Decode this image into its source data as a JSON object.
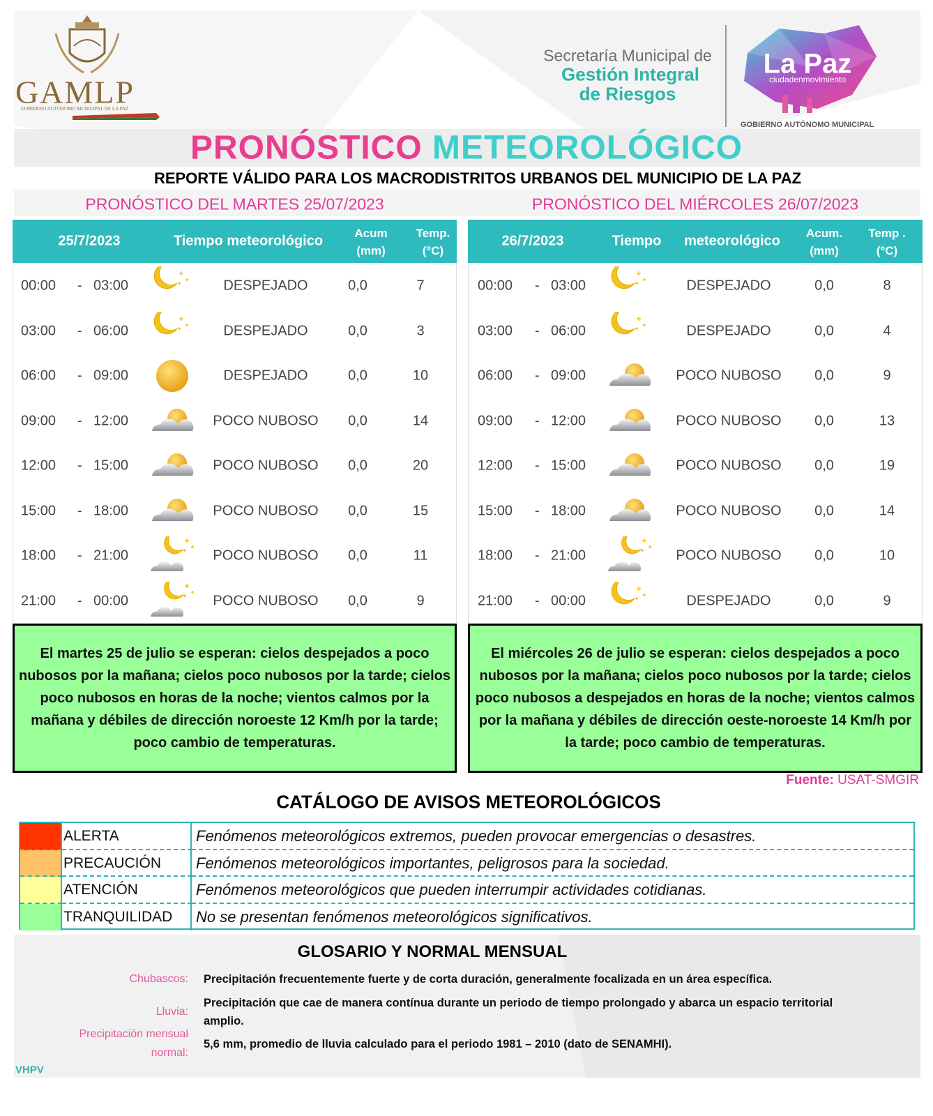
{
  "header": {
    "logo_left": "GAMLP",
    "logo_left_sub": "GOBIERNO AUTÓNOMO MUNICIPAL DE LA PAZ",
    "secretaria": [
      "Secretaría Municipal de",
      "Gestión Integral",
      "de Riesgos"
    ],
    "brand": "La Paz",
    "brand_sub": "ciudadenmovimiento",
    "brand_gov": "GOBIERNO AUTÓNOMO MUNICIPAL"
  },
  "title": {
    "part1": "PRONÓSTICO",
    "part2": "METEOROLÓGICO"
  },
  "subtitle": "REPORTE VÁLIDO PARA LOS MACRODISTRITOS URBANOS DEL MUNICIPIO DE LA PAZ",
  "forecasts": [
    {
      "heading": "PRONÓSTICO DEL MARTES 25/07/2023",
      "columns": [
        [
          "25/7/2023"
        ],
        [
          "Tiempo meteorológico"
        ],
        [
          "Acum",
          "(mm)"
        ],
        [
          "Temp.",
          "(°C)"
        ]
      ],
      "rows": [
        {
          "start": "00:00",
          "sep": "-",
          "end": "03:00",
          "icon": "moon",
          "condition": "DESPEJADO",
          "acum": "0,0",
          "temp": 7
        },
        {
          "start": "03:00",
          "sep": "-",
          "end": "06:00",
          "icon": "moon",
          "condition": "DESPEJADO",
          "acum": "0,0",
          "temp": 3
        },
        {
          "start": "06:00",
          "sep": "-",
          "end": "09:00",
          "icon": "sun",
          "condition": "DESPEJADO",
          "acum": "0,0",
          "temp": 10
        },
        {
          "start": "09:00",
          "sep": "-",
          "end": "12:00",
          "icon": "cloud-sun",
          "condition": "POCO NUBOSO",
          "acum": "0,0",
          "temp": 14
        },
        {
          "start": "12:00",
          "sep": "-",
          "end": "15:00",
          "icon": "cloud-sun",
          "condition": "POCO NUBOSO",
          "acum": "0,0",
          "temp": 20
        },
        {
          "start": "15:00",
          "sep": "-",
          "end": "18:00",
          "icon": "cloud-sun",
          "condition": "POCO NUBOSO",
          "acum": "0,0",
          "temp": 15
        },
        {
          "start": "18:00",
          "sep": "-",
          "end": "21:00",
          "icon": "cloud-moon",
          "condition": "POCO NUBOSO",
          "acum": "0,0",
          "temp": 11
        },
        {
          "start": "21:00",
          "sep": "-",
          "end": "00:00",
          "icon": "cloud-moon",
          "condition": "POCO NUBOSO",
          "acum": "0,0",
          "temp": 9
        }
      ],
      "summary": "El martes 25 de julio se esperan: cielos despejados a poco nubosos por la mañana; cielos poco nubosos por la tarde; cielos poco nubosos en horas de la noche; vientos calmos por la mañana y débiles de dirección noroeste 12 Km/h por la tarde; poco cambio de temperaturas."
    },
    {
      "heading": "PRONÓSTICO DEL MIÉRCOLES 26/07/2023",
      "columns": [
        [
          "26/7/2023"
        ],
        [
          "Tiempo"
        ],
        [
          "meteorológico"
        ],
        [
          "Acum.",
          "(mm)"
        ],
        [
          "Temp .",
          "(°C)"
        ]
      ],
      "rows": [
        {
          "start": "00:00",
          "sep": "-",
          "end": "03:00",
          "icon": "moon",
          "condition": "DESPEJADO",
          "acum": "0,0",
          "temp": 8
        },
        {
          "start": "03:00",
          "sep": "-",
          "end": "06:00",
          "icon": "moon",
          "condition": "DESPEJADO",
          "acum": "0,0",
          "temp": 4
        },
        {
          "start": "06:00",
          "sep": "-",
          "end": "09:00",
          "icon": "cloud-sun",
          "condition": "POCO NUBOSO",
          "acum": "0,0",
          "temp": 9
        },
        {
          "start": "09:00",
          "sep": "-",
          "end": "12:00",
          "icon": "cloud-sun",
          "condition": "POCO NUBOSO",
          "acum": "0,0",
          "temp": 13
        },
        {
          "start": "12:00",
          "sep": "-",
          "end": "15:00",
          "icon": "cloud-sun",
          "condition": "POCO NUBOSO",
          "acum": "0,0",
          "temp": 19
        },
        {
          "start": "15:00",
          "sep": "-",
          "end": "18:00",
          "icon": "cloud-sun",
          "condition": "POCO NUBOSO",
          "acum": "0,0",
          "temp": 14
        },
        {
          "start": "18:00",
          "sep": "-",
          "end": "21:00",
          "icon": "cloud-moon",
          "condition": "POCO NUBOSO",
          "acum": "0,0",
          "temp": 10
        },
        {
          "start": "21:00",
          "sep": "-",
          "end": "00:00",
          "icon": "moon",
          "condition": "DESPEJADO",
          "acum": "0,0",
          "temp": 9
        }
      ],
      "summary": "El miércoles 26 de julio se esperan: cielos despejados a poco nubosos por la mañana; cielos poco nubosos por la tarde; cielos poco nubosos a despejados en horas de la noche; vientos calmos por la mañana y débiles de dirección oeste-noroeste 14 Km/h por la tarde; poco cambio de temperaturas."
    }
  ],
  "source": {
    "label": "Fuente:",
    "value": "USAT-SMGIR"
  },
  "catalog": {
    "title": "CATÁLOGO DE AVISOS METEOROLÓGICOS",
    "rows": [
      {
        "color": "#ff3300",
        "level": "ALERTA",
        "description": "Fenómenos meteorológicos extremos, pueden provocar emergencias o desastres."
      },
      {
        "color": "#ffc266",
        "level": "PRECAUCIÓN",
        "description": "Fenómenos meteorológicos importantes, peligrosos para la sociedad."
      },
      {
        "color": "#ffff99",
        "level": "ATENCIÓN",
        "description": "Fenómenos meteorológicos que pueden interrumpir actividades cotidianas."
      },
      {
        "color": "#99ff99",
        "level": "TRANQUILIDAD",
        "description": "No se presentan fenómenos meteorológicos significativos."
      }
    ]
  },
  "glossary": {
    "title": "GLOSARIO Y NORMAL MENSUAL",
    "items": [
      {
        "term": [
          "Chubascos:"
        ],
        "definition": "Precipitación frecuentemente fuerte y de corta duración, generalmente focalizada en un área específica."
      },
      {
        "term": [
          "Lluvia:"
        ],
        "definition": "Precipitación que cae de manera contínua durante un periodo de tiempo prolongado y abarca un espacio territorial amplio."
      },
      {
        "term": [
          "Precipitación mensual",
          "normal:"
        ],
        "definition": "5,6 mm, promedio de lluvia calculado para el periodo 1981 – 2010 (dato de SENAMHI)."
      }
    ]
  },
  "footer": "VHPV"
}
